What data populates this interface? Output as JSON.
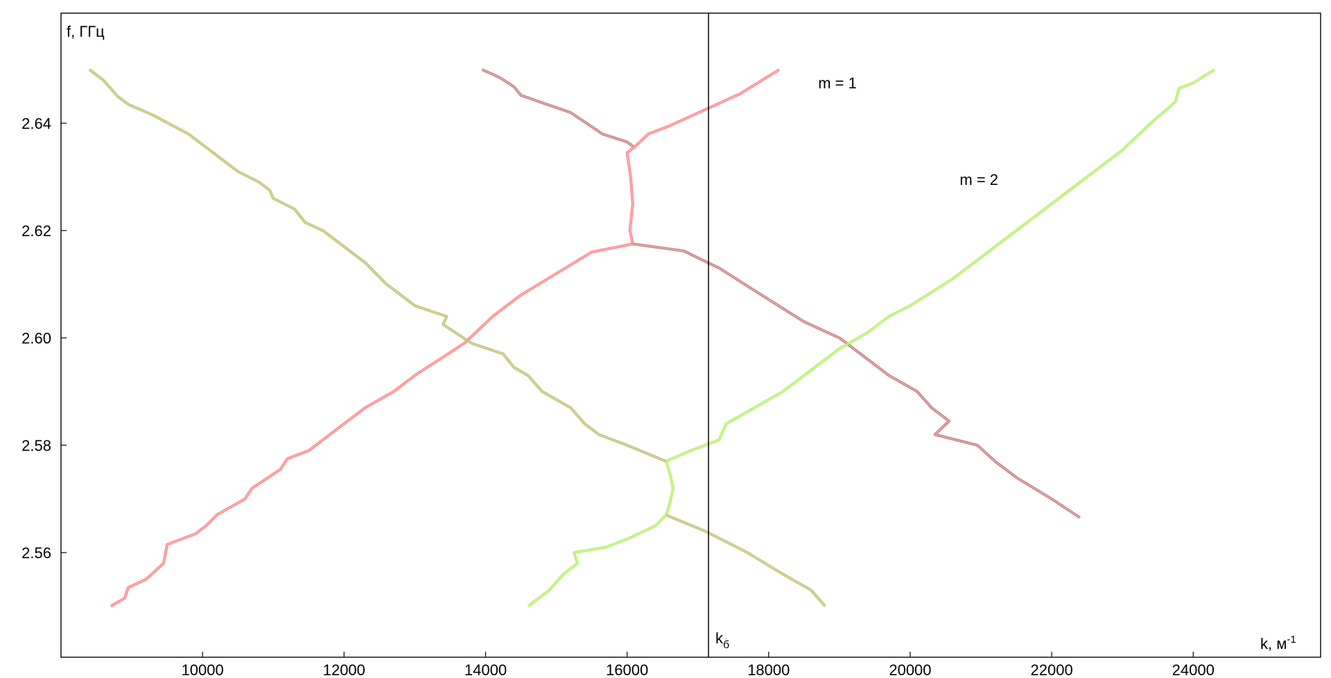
{
  "chart_data": {
    "type": "line",
    "xlabel": "k, м",
    "xlabel_sup": "-1",
    "ylabel": "f, ГГц",
    "xlim": [
      8000,
      25800
    ],
    "ylim": [
      2.5405,
      2.6605
    ],
    "x_ticks": [
      10000,
      12000,
      14000,
      16000,
      18000,
      20000,
      22000,
      24000
    ],
    "y_ticks": [
      2.56,
      2.58,
      2.6,
      2.62,
      2.64
    ],
    "y_tick_labels": [
      "2.56",
      "2.58",
      "2.60",
      "2.62",
      "2.64"
    ],
    "grid": false,
    "legend": "none",
    "annotations": [
      {
        "text": "m = 1",
        "x": 18700,
        "y": 2.6465
      },
      {
        "text": "m = 2",
        "x": 20700,
        "y": 2.6285
      }
    ],
    "vline": {
      "x": 17150,
      "label": "k",
      "label_sub": "б"
    },
    "series": [
      {
        "color": "#c07070",
        "points": [
          [
            13950,
            2.65
          ],
          [
            14200,
            2.6485
          ],
          [
            14400,
            2.6468
          ],
          [
            14500,
            2.6452
          ],
          [
            14800,
            2.6438
          ],
          [
            15200,
            2.642
          ],
          [
            15650,
            2.638
          ],
          [
            16000,
            2.6365
          ],
          [
            16100,
            2.6355
          ]
        ]
      },
      {
        "color": "#ff7777",
        "points": [
          [
            16100,
            2.6355
          ],
          [
            16300,
            2.638
          ],
          [
            16600,
            2.6395
          ],
          [
            17100,
            2.6425
          ],
          [
            17600,
            2.6455
          ],
          [
            18150,
            2.65
          ]
        ]
      },
      {
        "color": "#ff7777",
        "points": [
          [
            16100,
            2.6355
          ],
          [
            16000,
            2.6345
          ],
          [
            16050,
            2.63
          ],
          [
            16080,
            2.625
          ],
          [
            16040,
            2.62
          ],
          [
            16080,
            2.6175
          ]
        ]
      },
      {
        "color": "#ff7777",
        "points": [
          [
            8700,
            2.55
          ],
          [
            8900,
            2.5515
          ],
          [
            8950,
            2.5535
          ],
          [
            9200,
            2.555
          ],
          [
            9450,
            2.558
          ],
          [
            9500,
            2.5615
          ],
          [
            9900,
            2.5635
          ],
          [
            10050,
            2.565
          ],
          [
            10200,
            2.567
          ],
          [
            10600,
            2.57
          ],
          [
            10700,
            2.572
          ],
          [
            11100,
            2.5755
          ],
          [
            11200,
            2.5775
          ],
          [
            11500,
            2.579
          ],
          [
            11700,
            2.581
          ],
          [
            12000,
            2.584
          ],
          [
            12300,
            2.587
          ],
          [
            12700,
            2.59
          ],
          [
            13000,
            2.593
          ],
          [
            13700,
            2.599
          ],
          [
            14100,
            2.604
          ],
          [
            14500,
            2.608
          ],
          [
            15000,
            2.612
          ],
          [
            15500,
            2.616
          ],
          [
            16080,
            2.6175
          ]
        ]
      },
      {
        "color": "#c07070",
        "points": [
          [
            16080,
            2.6175
          ],
          [
            16800,
            2.6162
          ],
          [
            17300,
            2.613
          ],
          [
            17900,
            2.608
          ],
          [
            18500,
            2.603
          ],
          [
            19000,
            2.6
          ],
          [
            19300,
            2.597
          ],
          [
            19700,
            2.593
          ],
          [
            20100,
            2.59
          ],
          [
            20300,
            2.587
          ],
          [
            20550,
            2.5845
          ],
          [
            20350,
            2.582
          ],
          [
            20950,
            2.58
          ],
          [
            21200,
            2.577
          ],
          [
            21500,
            2.574
          ],
          [
            22000,
            2.57
          ],
          [
            22400,
            2.5665
          ]
        ]
      },
      {
        "color": "#b8b860",
        "points": [
          [
            8400,
            2.65
          ],
          [
            8600,
            2.648
          ],
          [
            8800,
            2.645
          ],
          [
            8950,
            2.6435
          ],
          [
            9300,
            2.6415
          ],
          [
            9800,
            2.638
          ],
          [
            10200,
            2.634
          ],
          [
            10500,
            2.631
          ],
          [
            10800,
            2.629
          ],
          [
            10950,
            2.6275
          ],
          [
            11000,
            2.626
          ],
          [
            11300,
            2.624
          ],
          [
            11450,
            2.6215
          ],
          [
            11700,
            2.62
          ],
          [
            11900,
            2.618
          ],
          [
            12300,
            2.614
          ],
          [
            12600,
            2.61
          ],
          [
            13000,
            2.606
          ],
          [
            13450,
            2.604
          ],
          [
            13400,
            2.6025
          ],
          [
            13800,
            2.599
          ],
          [
            14250,
            2.597
          ],
          [
            14400,
            2.5945
          ],
          [
            14600,
            2.593
          ],
          [
            14800,
            2.59
          ],
          [
            15200,
            2.587
          ],
          [
            15400,
            2.584
          ],
          [
            15600,
            2.582
          ],
          [
            16000,
            2.58
          ],
          [
            16550,
            2.577
          ]
        ]
      },
      {
        "color": "#aaee55",
        "points": [
          [
            16550,
            2.577
          ],
          [
            16600,
            2.575
          ],
          [
            16650,
            2.572
          ],
          [
            16600,
            2.569
          ],
          [
            16550,
            2.567
          ]
        ]
      },
      {
        "color": "#b8b860",
        "points": [
          [
            16550,
            2.567
          ],
          [
            17100,
            2.564
          ],
          [
            17700,
            2.56
          ],
          [
            18200,
            2.556
          ],
          [
            18600,
            2.553
          ],
          [
            18800,
            2.55
          ]
        ]
      },
      {
        "color": "#aaee55",
        "points": [
          [
            14600,
            2.55
          ],
          [
            14900,
            2.553
          ],
          [
            15100,
            2.556
          ],
          [
            15300,
            2.558
          ],
          [
            15250,
            2.56
          ],
          [
            15700,
            2.561
          ],
          [
            16000,
            2.5625
          ],
          [
            16400,
            2.565
          ],
          [
            16550,
            2.567
          ]
        ]
      },
      {
        "color": "#aaee55",
        "points": [
          [
            16550,
            2.577
          ],
          [
            16900,
            2.579
          ],
          [
            17300,
            2.581
          ],
          [
            17400,
            2.584
          ],
          [
            17800,
            2.587
          ],
          [
            18200,
            2.59
          ],
          [
            18600,
            2.594
          ],
          [
            19000,
            2.598
          ],
          [
            19400,
            2.601
          ],
          [
            19700,
            2.604
          ],
          [
            20000,
            2.606
          ],
          [
            20600,
            2.611
          ],
          [
            21000,
            2.615
          ],
          [
            21400,
            2.619
          ],
          [
            21800,
            2.623
          ],
          [
            22200,
            2.627
          ],
          [
            22600,
            2.631
          ],
          [
            23000,
            2.635
          ],
          [
            23400,
            2.64
          ],
          [
            23750,
            2.644
          ],
          [
            23800,
            2.6465
          ],
          [
            24000,
            2.6475
          ],
          [
            24300,
            2.65
          ]
        ]
      }
    ]
  }
}
